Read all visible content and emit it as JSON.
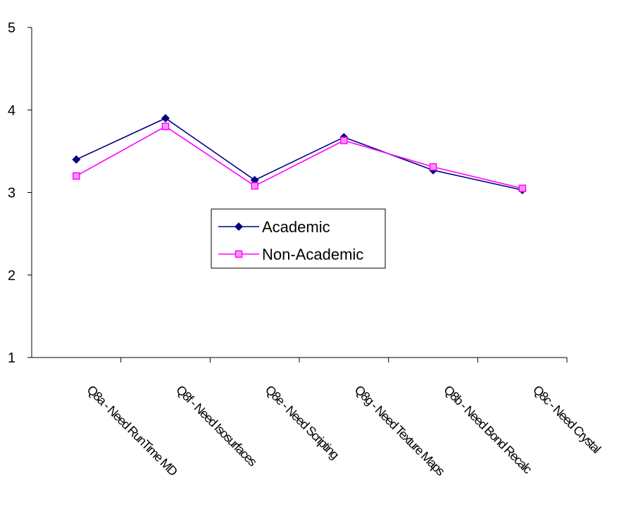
{
  "chart_data": {
    "type": "line",
    "categories": [
      "Q8a - Need RunTime MD",
      "Q8f - Need Isosurfaces",
      "Q8e - Need Scripting",
      "Q8g - Need Texture Maps",
      "Q8b - Need Bond Recalc",
      "Q8c - Need Crystal"
    ],
    "series": [
      {
        "name": "Academic",
        "values": [
          3.4,
          3.9,
          3.15,
          3.67,
          3.27,
          3.03
        ],
        "color": "#000080",
        "marker": "diamond"
      },
      {
        "name": "Non-Academic",
        "values": [
          3.2,
          3.8,
          3.08,
          3.63,
          3.31,
          3.05
        ],
        "color": "#ff00ff",
        "marker": "square"
      }
    ],
    "ylim": [
      1,
      5
    ],
    "yticks": [
      "1",
      "2",
      "3",
      "4",
      "5"
    ],
    "grid": false,
    "legend_position": "center"
  }
}
